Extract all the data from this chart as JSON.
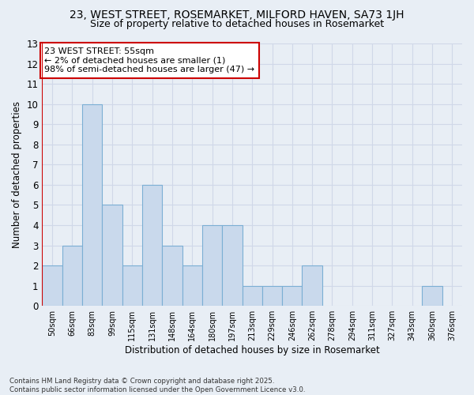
{
  "title": "23, WEST STREET, ROSEMARKET, MILFORD HAVEN, SA73 1JH",
  "subtitle": "Size of property relative to detached houses in Rosemarket",
  "xlabel": "Distribution of detached houses by size in Rosemarket",
  "ylabel": "Number of detached properties",
  "bins": [
    "50sqm",
    "66sqm",
    "83sqm",
    "99sqm",
    "115sqm",
    "131sqm",
    "148sqm",
    "164sqm",
    "180sqm",
    "197sqm",
    "213sqm",
    "229sqm",
    "246sqm",
    "262sqm",
    "278sqm",
    "294sqm",
    "311sqm",
    "327sqm",
    "343sqm",
    "360sqm",
    "376sqm"
  ],
  "values": [
    2,
    3,
    10,
    5,
    2,
    6,
    3,
    2,
    4,
    4,
    1,
    1,
    1,
    2,
    0,
    0,
    0,
    0,
    0,
    1,
    0
  ],
  "bar_color": "#c9d9ec",
  "bar_edge_color": "#7bafd4",
  "subject_line_color": "#cc0000",
  "annotation_text": "23 WEST STREET: 55sqm\n← 2% of detached houses are smaller (1)\n98% of semi-detached houses are larger (47) →",
  "annotation_box_color": "#ffffff",
  "annotation_box_edge_color": "#cc0000",
  "ylim": [
    0,
    13
  ],
  "yticks": [
    0,
    1,
    2,
    3,
    4,
    5,
    6,
    7,
    8,
    9,
    10,
    11,
    12,
    13
  ],
  "grid_color": "#d0d8e8",
  "footer": "Contains HM Land Registry data © Crown copyright and database right 2025.\nContains public sector information licensed under the Open Government Licence v3.0.",
  "bg_color": "#e8eef5",
  "title_fontsize": 10,
  "subtitle_fontsize": 9,
  "annotation_fontsize": 8
}
